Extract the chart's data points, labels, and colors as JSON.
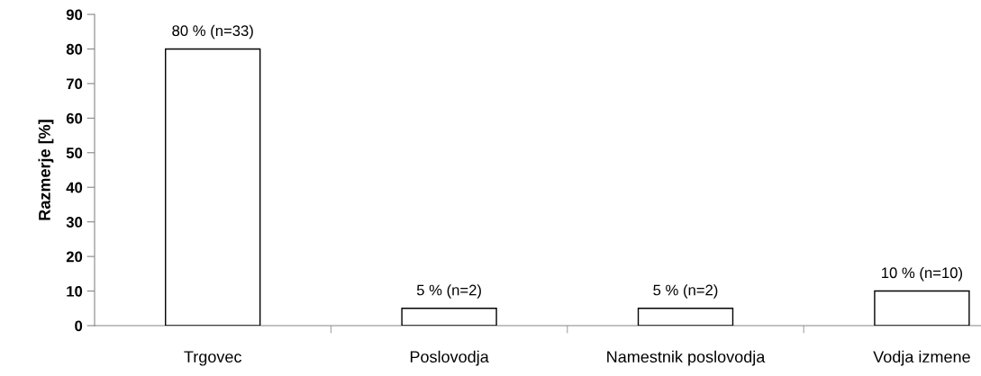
{
  "chart_data": {
    "type": "bar",
    "ylabel": "Razmerje [%]",
    "categories": [
      "Trgovec",
      "Poslovodja",
      "Namestnik poslovodja",
      "Vodja izmene"
    ],
    "values": [
      80,
      5,
      5,
      10
    ],
    "value_labels": [
      "80 % (n=33)",
      "5 % (n=2)",
      "5 % (n=2)",
      "10 % (n=10)"
    ],
    "color": "#ffffff",
    "ylim": [
      0,
      90
    ],
    "yticks": [
      0,
      10,
      20,
      30,
      40,
      50,
      60,
      70,
      80,
      90
    ],
    "grid": false
  }
}
